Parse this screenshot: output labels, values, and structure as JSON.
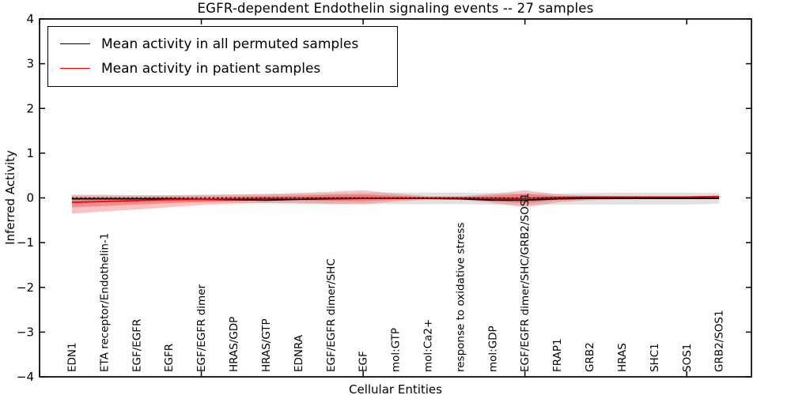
{
  "chart_data": {
    "type": "line",
    "title": "EGFR-dependent Endothelin signaling events -- 27 samples",
    "xlabel": "Cellular Entities",
    "ylabel": "Inferred Activity",
    "xlim": [
      0,
      22
    ],
    "ylim": [
      -4,
      4
    ],
    "yticks": [
      4,
      3,
      2,
      1,
      0,
      -1,
      -2,
      -3,
      -4
    ],
    "x_major_ticks": [
      0,
      5,
      10,
      15,
      20
    ],
    "grid": false,
    "x": [
      1,
      2,
      3,
      4,
      5,
      6,
      7,
      8,
      9,
      10,
      11,
      12,
      13,
      14,
      15,
      16,
      17,
      18,
      19,
      20,
      21
    ],
    "categories": [
      "EDN1",
      "ETA receptor/Endothelin-1",
      "EGF/EGFR",
      "EGFR",
      "EGF/EGFR dimer",
      "HRAS/GDP",
      "HRAS/GTP",
      "EDNRA",
      "EGF/EGFR dimer/SHC",
      "EGF",
      "mol:GTP",
      "mol:Ca2+",
      "response to oxidative stress",
      "mol:GDP",
      "EGF/EGFR dimer/SHC/GRB2/SOS1",
      "FRAP1",
      "GRB2",
      "HRAS",
      "SHC1",
      "SOS1",
      "GRB2/SOS1"
    ],
    "legend": {
      "position": "upper left",
      "entries": [
        {
          "label": "Mean activity in all permuted samples",
          "color": "#000000"
        },
        {
          "label": "Mean activity in patient samples",
          "color": "#ff0000"
        }
      ]
    },
    "bands": [
      {
        "name": "permuted-samples-range",
        "color": "#bdbdbd",
        "opacity": 0.45,
        "top": [
          0.05,
          0.05,
          0.05,
          0.06,
          0.06,
          0.07,
          0.08,
          0.09,
          0.1,
          0.11,
          0.12,
          0.12,
          0.12,
          0.11,
          0.1,
          0.1,
          0.11,
          0.12,
          0.12,
          0.12,
          0.11
        ],
        "bottom": [
          -0.09,
          -0.09,
          -0.09,
          -0.1,
          -0.1,
          -0.11,
          -0.12,
          -0.13,
          -0.13,
          -0.14,
          -0.14,
          -0.14,
          -0.14,
          -0.15,
          -0.16,
          -0.15,
          -0.15,
          -0.15,
          -0.15,
          -0.15,
          -0.13
        ]
      },
      {
        "name": "patient-samples-outer-range",
        "color": "#f07070",
        "opacity": 0.42,
        "top": [
          0.07,
          0.07,
          0.06,
          0.06,
          0.07,
          0.08,
          0.09,
          0.11,
          0.14,
          0.17,
          0.1,
          0.04,
          0.04,
          0.09,
          0.17,
          0.08,
          0.05,
          0.04,
          0.04,
          0.04,
          0.05
        ],
        "bottom": [
          -0.35,
          -0.3,
          -0.26,
          -0.21,
          -0.16,
          -0.13,
          -0.11,
          -0.12,
          -0.14,
          -0.14,
          -0.08,
          -0.04,
          -0.04,
          -0.11,
          -0.21,
          -0.1,
          -0.05,
          -0.03,
          -0.02,
          -0.02,
          -0.01
        ]
      },
      {
        "name": "patient-samples-inner-range",
        "color": "#e04545",
        "opacity": 0.42,
        "top": [
          0.01,
          0.01,
          0.01,
          0.02,
          0.02,
          0.03,
          0.04,
          0.05,
          0.07,
          0.08,
          0.05,
          0.02,
          0.02,
          0.05,
          0.09,
          0.04,
          0.03,
          0.03,
          0.03,
          0.03,
          0.04
        ],
        "bottom": [
          -0.21,
          -0.18,
          -0.15,
          -0.12,
          -0.09,
          -0.07,
          -0.06,
          -0.06,
          -0.07,
          -0.07,
          -0.04,
          -0.02,
          -0.02,
          -0.06,
          -0.12,
          -0.05,
          -0.02,
          -0.01,
          0.0,
          0.0,
          0.01
        ]
      }
    ],
    "series": [
      {
        "name": "Mean activity in all permuted samples",
        "color": "#000000",
        "width": 1.8,
        "values": [
          -0.02,
          -0.02,
          -0.02,
          -0.02,
          -0.03,
          -0.04,
          -0.05,
          -0.03,
          -0.02,
          -0.01,
          -0.01,
          -0.01,
          -0.02,
          -0.05,
          -0.05,
          -0.02,
          -0.01,
          -0.01,
          -0.01,
          -0.01,
          -0.01
        ]
      },
      {
        "name": "Mean activity in patient samples",
        "color": "#ff0000",
        "width": 1.8,
        "values": [
          -0.1,
          -0.08,
          -0.06,
          -0.04,
          -0.03,
          -0.02,
          -0.01,
          -0.01,
          0.0,
          0.0,
          0.0,
          0.0,
          0.0,
          -0.01,
          -0.01,
          0.01,
          0.02,
          0.02,
          0.02,
          0.02,
          0.03
        ]
      }
    ],
    "zero_line": {
      "y": 0,
      "style": "dotted",
      "color": "#000000"
    }
  }
}
